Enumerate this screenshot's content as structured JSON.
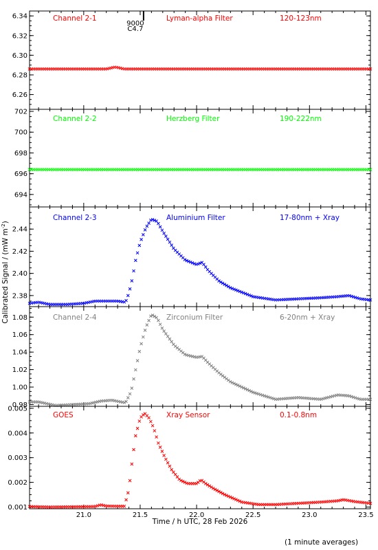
{
  "chart_data": {
    "type": "scatter",
    "xlabel": "Time / h UTC, 28 Feb 2026",
    "ylabel": "Calibrated Signal / (mW m",
    "ylabel_sup": "-2",
    "ylabel_end": ")",
    "footnote": "(1 minute averages)",
    "xlim": [
      20.52,
      23.54
    ],
    "xticks": [
      "21.0",
      "21.5",
      "22.0",
      "22.5",
      "23.0",
      "23.5"
    ],
    "event_marker": {
      "x": 21.53,
      "label_top": "9000",
      "label_bottom": "C4.7"
    },
    "panels": [
      {
        "channel": "Channel 2-1",
        "filter": "Lyman-alpha Filter",
        "band": "120-123nm",
        "color": "#ff0000",
        "ylim": [
          6.245,
          6.345
        ],
        "yticks": [
          "6.26",
          "6.28",
          "6.30",
          "6.32",
          "6.34"
        ],
        "series": {
          "x": [
            20.52,
            21.0,
            21.2,
            21.28,
            21.36,
            21.5,
            22.0,
            22.5,
            23.0,
            23.54
          ],
          "y": [
            6.286,
            6.286,
            6.286,
            6.288,
            6.286,
            6.286,
            6.286,
            6.286,
            6.286,
            6.286
          ]
        }
      },
      {
        "channel": "Channel 2-2",
        "filter": "Herzberg Filter",
        "band": "190-222nm",
        "color": "#00ff00",
        "ylim": [
          692.8,
          702.2
        ],
        "yticks": [
          "694",
          "696",
          "698",
          "700",
          "702"
        ],
        "series": {
          "x": [
            20.52,
            21.0,
            21.5,
            22.0,
            22.5,
            23.0,
            23.54
          ],
          "y": [
            696.4,
            696.4,
            696.4,
            696.4,
            696.4,
            696.4,
            696.4
          ]
        }
      },
      {
        "channel": "Channel 2-3",
        "filter": "Aluminium Filter",
        "band": "17-80nm + Xray",
        "color": "#0000ff",
        "ylim": [
          2.37,
          2.46
        ],
        "yticks": [
          "2.38",
          "2.40",
          "2.42",
          "2.44"
        ],
        "series": {
          "x": [
            20.52,
            20.6,
            20.7,
            20.85,
            21.0,
            21.1,
            21.15,
            21.2,
            21.3,
            21.37,
            21.4,
            21.43,
            21.46,
            21.5,
            21.55,
            21.6,
            21.65,
            21.7,
            21.8,
            21.9,
            22.0,
            22.05,
            22.1,
            22.2,
            22.3,
            22.5,
            22.7,
            22.9,
            23.1,
            23.25,
            23.35,
            23.45,
            23.54
          ],
          "y": [
            2.373,
            2.374,
            2.372,
            2.372,
            2.373,
            2.375,
            2.375,
            2.375,
            2.375,
            2.374,
            2.382,
            2.395,
            2.412,
            2.428,
            2.441,
            2.449,
            2.447,
            2.438,
            2.422,
            2.412,
            2.408,
            2.41,
            2.403,
            2.393,
            2.387,
            2.379,
            2.376,
            2.377,
            2.378,
            2.379,
            2.38,
            2.377,
            2.376
          ]
        }
      },
      {
        "channel": "Channel 2-4",
        "filter": "Zirconium Filter",
        "band": "6-20nm + Xray",
        "color": "#808080",
        "ylim": [
          0.978,
          1.092
        ],
        "yticks": [
          "0.98",
          "1.00",
          "1.02",
          "1.04",
          "1.06",
          "1.08"
        ],
        "series": {
          "x": [
            20.52,
            20.6,
            20.75,
            20.9,
            21.05,
            21.15,
            21.25,
            21.37,
            21.42,
            21.46,
            21.5,
            21.55,
            21.6,
            21.65,
            21.7,
            21.8,
            21.9,
            22.0,
            22.05,
            22.1,
            22.2,
            22.3,
            22.5,
            22.7,
            22.9,
            23.1,
            23.25,
            23.35,
            23.45,
            23.54
          ],
          "y": [
            0.983,
            0.983,
            0.979,
            0.98,
            0.981,
            0.984,
            0.985,
            0.982,
            0.995,
            1.02,
            1.045,
            1.068,
            1.083,
            1.079,
            1.066,
            1.048,
            1.037,
            1.034,
            1.035,
            1.028,
            1.016,
            1.006,
            0.994,
            0.986,
            0.988,
            0.986,
            0.991,
            0.99,
            0.986,
            0.986
          ]
        }
      },
      {
        "channel": "GOES",
        "filter": "Xray Sensor",
        "band": "0.1-0.8nm",
        "color": "#ff0000",
        "ylim": [
          0.00093,
          0.00508
        ],
        "yticks": [
          "0.001",
          "0.002",
          "0.003",
          "0.004",
          "0.005"
        ],
        "series": {
          "x": [
            20.52,
            20.7,
            20.9,
            21.1,
            21.15,
            21.2,
            21.3,
            21.36,
            21.4,
            21.43,
            21.46,
            21.5,
            21.54,
            21.58,
            21.62,
            21.66,
            21.72,
            21.78,
            21.85,
            21.92,
            22.0,
            22.04,
            22.08,
            22.15,
            22.25,
            22.4,
            22.55,
            22.7,
            22.9,
            23.1,
            23.25,
            23.3,
            23.4,
            23.54
          ],
          "y": [
            0.00102,
            0.001,
            0.00101,
            0.00102,
            0.00109,
            0.00104,
            0.00103,
            0.00103,
            0.0017,
            0.0029,
            0.0039,
            0.0046,
            0.0048,
            0.0046,
            0.0042,
            0.0036,
            0.003,
            0.0025,
            0.0021,
            0.00195,
            0.00195,
            0.0021,
            0.00195,
            0.00175,
            0.0015,
            0.0012,
            0.0011,
            0.0011,
            0.00115,
            0.0012,
            0.00125,
            0.0013,
            0.00122,
            0.00115
          ]
        }
      }
    ]
  }
}
